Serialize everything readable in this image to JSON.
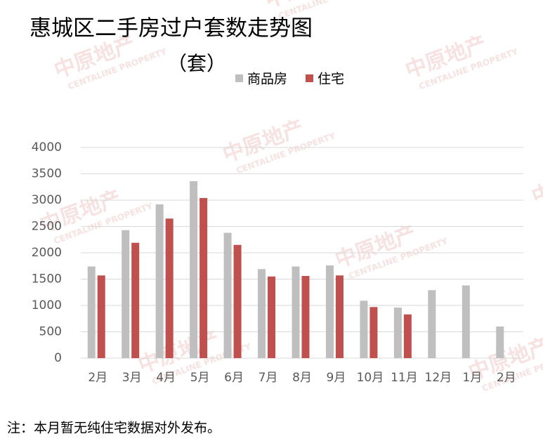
{
  "chart_data": {
    "type": "bar",
    "title": "惠城区二手房过户套数走势图",
    "subtitle": "（套）",
    "note": "注：本月暂无纯住宅数据对外发布。",
    "watermark": {
      "cn": "中原地产",
      "en": "CENTALINE PROPERTY"
    },
    "categories": [
      "2月",
      "3月",
      "4月",
      "5月",
      "6月",
      "7月",
      "8月",
      "9月",
      "10月",
      "11月",
      "12月",
      "1月",
      "2月"
    ],
    "series": [
      {
        "name": "商品房",
        "color": "#bfbfbf",
        "values": [
          1740,
          2430,
          2920,
          3360,
          2380,
          1690,
          1740,
          1760,
          1090,
          960,
          1290,
          1380,
          600
        ]
      },
      {
        "name": "住宅",
        "color": "#c0504d",
        "values": [
          1570,
          2190,
          2650,
          3040,
          2150,
          1550,
          1560,
          1570,
          970,
          830,
          null,
          null,
          null
        ]
      }
    ],
    "ylim": [
      0,
      4000
    ],
    "yticks": [
      0,
      500,
      1000,
      1500,
      2000,
      2500,
      3000,
      3500,
      4000
    ],
    "grid": true,
    "legend": "top"
  }
}
